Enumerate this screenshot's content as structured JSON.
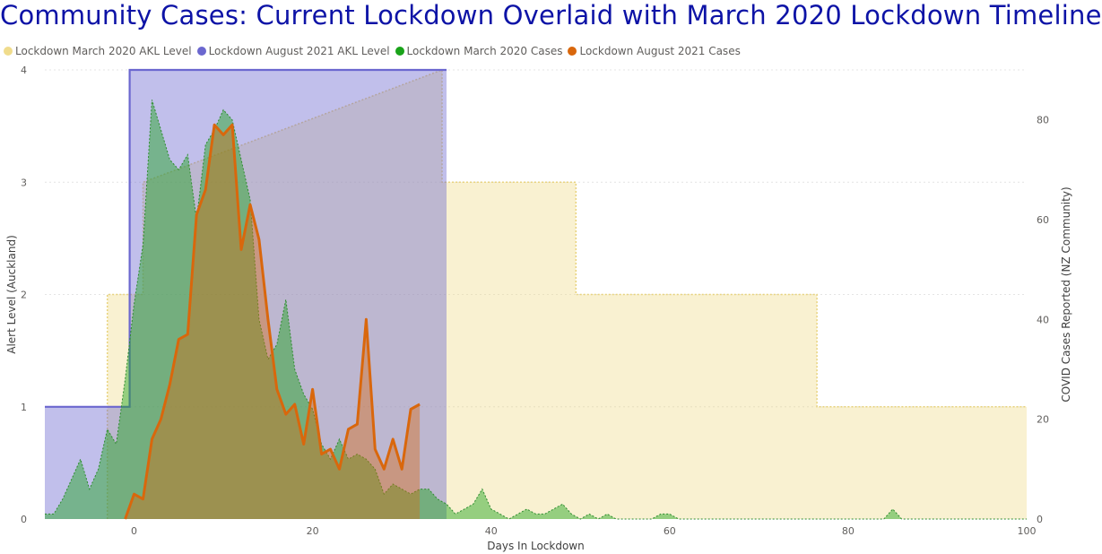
{
  "chart_data": {
    "type": "area",
    "title": "Community Cases: Current Lockdown Overlaid with March 2020 Lockdown Timeline",
    "xlabel": "Days In Lockdown",
    "ylabel_left": "Alert Level (Auckland)",
    "ylabel_right": "COVID Cases Reported (NZ Community)",
    "xlim": [
      -10,
      100
    ],
    "ylim_left": [
      0,
      4
    ],
    "ylim_right": [
      0,
      90
    ],
    "x_ticks": [
      0,
      20,
      40,
      60,
      80,
      100
    ],
    "y_ticks_left": [
      0,
      1,
      2,
      3,
      4
    ],
    "y_ticks_right": [
      0,
      20,
      40,
      60,
      80
    ],
    "grid": true,
    "legend_position": "top-left",
    "series": [
      {
        "name": "Lockdown March 2020 AKL Level",
        "axis": "left",
        "color": "#f0dc8c",
        "style": "step-area",
        "x": [
          -3,
          -3,
          1,
          1,
          34.5,
          34.5,
          49.5,
          49.5,
          76.5,
          76.5,
          100
        ],
        "y": [
          0,
          2,
          2,
          3,
          4,
          3,
          3,
          2,
          2,
          1,
          1
        ]
      },
      {
        "name": "Lockdown August 2021 AKL Level",
        "axis": "left",
        "color": "#6b67cf",
        "style": "step-area",
        "x": [
          -10,
          -0.5,
          -0.5,
          35,
          35
        ],
        "y": [
          1,
          1,
          4,
          4,
          0
        ]
      },
      {
        "name": "Lockdown March 2020 Cases",
        "axis": "right",
        "color": "#1aa31a",
        "style": "area",
        "x": [
          -10,
          -9,
          -8,
          -7,
          -6,
          -5,
          -4,
          -3,
          -2,
          -1,
          0,
          1,
          2,
          3,
          4,
          5,
          6,
          7,
          8,
          9,
          10,
          11,
          12,
          13,
          14,
          15,
          16,
          17,
          18,
          19,
          20,
          21,
          22,
          23,
          24,
          25,
          26,
          27,
          28,
          29,
          30,
          31,
          32,
          33,
          34,
          35,
          36,
          37,
          38,
          39,
          40,
          41,
          42,
          43,
          44,
          45,
          46,
          47,
          48,
          49,
          50,
          51,
          52,
          53,
          54,
          55,
          56,
          57,
          58,
          59,
          60,
          61,
          62,
          70,
          75,
          80,
          84,
          85,
          86,
          90,
          100
        ],
        "y": [
          1,
          1,
          4,
          8,
          12,
          6,
          10,
          18,
          15,
          28,
          43,
          55,
          84,
          78,
          72,
          70,
          73,
          60,
          75,
          78,
          82,
          80,
          72,
          64,
          40,
          32,
          35,
          44,
          30,
          25,
          22,
          15,
          12,
          16,
          12,
          13,
          12,
          10,
          5,
          7,
          6,
          5,
          6,
          6,
          4,
          3,
          1,
          2,
          3,
          6,
          2,
          1,
          0,
          1,
          2,
          1,
          1,
          2,
          3,
          1,
          0,
          1,
          0,
          1,
          0,
          0,
          0,
          0,
          0,
          1,
          1,
          0,
          0,
          0,
          0,
          0,
          0,
          2,
          0,
          0,
          0
        ]
      },
      {
        "name": "Lockdown August 2021 Cases",
        "axis": "right",
        "color": "#d9670c",
        "style": "area",
        "x": [
          -1,
          0,
          1,
          2,
          3,
          4,
          5,
          6,
          7,
          8,
          9,
          10,
          11,
          12,
          13,
          14,
          15,
          16,
          17,
          18,
          19,
          20,
          21,
          22,
          23,
          24,
          25,
          26,
          27,
          28,
          29,
          30,
          31,
          32
        ],
        "y": [
          0,
          5,
          4,
          16,
          20,
          27,
          36,
          37,
          61,
          66,
          79,
          77,
          79,
          54,
          63,
          56,
          40,
          26,
          21,
          23,
          15,
          26,
          13,
          14,
          10,
          18,
          19,
          40,
          14,
          10,
          16,
          10,
          22,
          23
        ]
      }
    ]
  }
}
